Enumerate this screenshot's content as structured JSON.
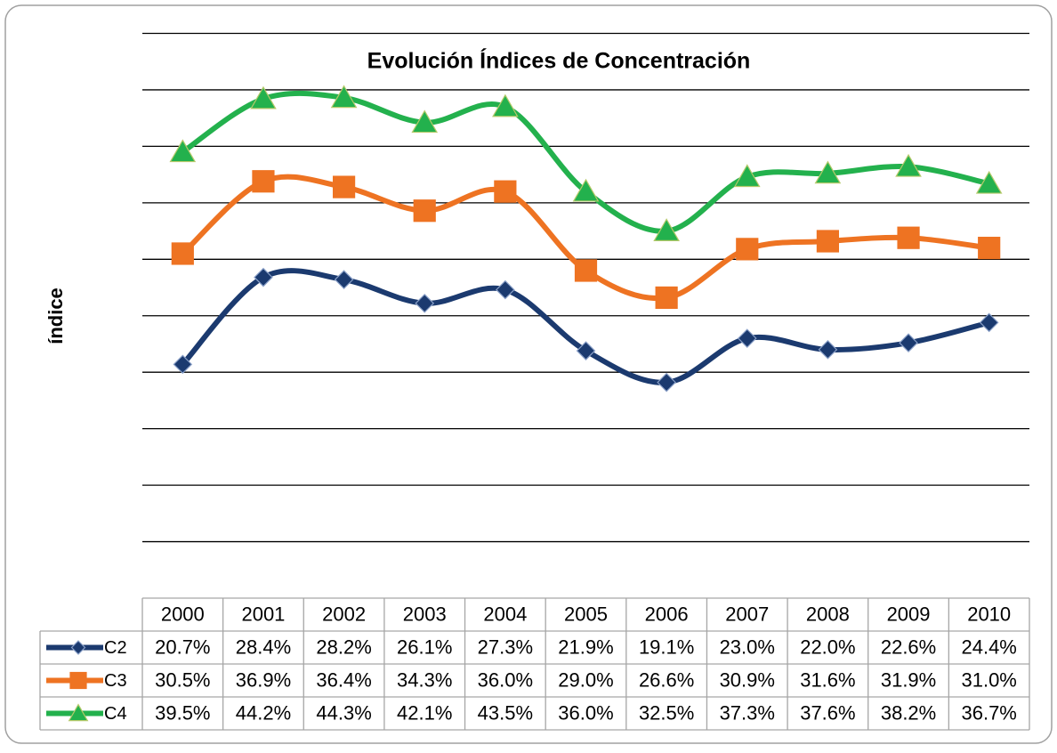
{
  "chart_data": {
    "type": "line",
    "title": "Evolución Índices de Concentración",
    "y_label": "índice",
    "categories": [
      "2000",
      "2001",
      "2002",
      "2003",
      "2004",
      "2005",
      "2006",
      "2007",
      "2008",
      "2009",
      "2010"
    ],
    "series": [
      {
        "name": "C2",
        "color": "#1b3a6f",
        "marker": "diamond",
        "values": [
          20.7,
          28.4,
          28.2,
          26.1,
          27.3,
          21.9,
          19.1,
          23.0,
          22.0,
          22.6,
          24.4
        ],
        "value_labels": [
          "20.7%",
          "28.4%",
          "28.2%",
          "26.1%",
          "27.3%",
          "21.9%",
          "19.1%",
          "23.0%",
          "22.0%",
          "22.6%",
          "24.4%"
        ]
      },
      {
        "name": "C3",
        "color": "#ee7322",
        "marker": "square",
        "values": [
          30.5,
          36.9,
          36.4,
          34.3,
          36.0,
          29.0,
          26.6,
          30.9,
          31.6,
          31.9,
          31.0
        ],
        "value_labels": [
          "30.5%",
          "36.9%",
          "36.4%",
          "34.3%",
          "36.0%",
          "29.0%",
          "26.6%",
          "30.9%",
          "31.6%",
          "31.9%",
          "31.0%"
        ]
      },
      {
        "name": "C4",
        "color": "#23b14d",
        "marker": "triangle",
        "values": [
          39.5,
          44.2,
          44.3,
          42.1,
          43.5,
          36.0,
          32.5,
          37.3,
          37.6,
          38.2,
          36.7
        ],
        "value_labels": [
          "39.5%",
          "44.2%",
          "44.3%",
          "42.1%",
          "43.5%",
          "36.0%",
          "32.5%",
          "37.3%",
          "37.6%",
          "38.2%",
          "36.7%"
        ]
      }
    ],
    "ylim": [
      0,
      50
    ],
    "yticks": [
      5,
      10,
      15,
      20,
      25,
      30,
      35,
      40,
      45,
      50
    ],
    "grid": true,
    "smooth": true
  }
}
